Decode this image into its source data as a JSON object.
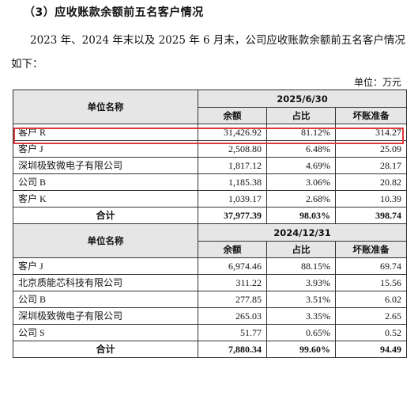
{
  "section_heading": "（3）应收账款余额前五名客户情况",
  "intro_text": "2023 年、2024 年末以及 2025 年 6 月末，公司应收账款余额前五名客户情况如下：",
  "unit_label": "单位：万元",
  "highlight_color": "#e0393b",
  "tables": [
    {
      "name_header": "单位名称",
      "period": "2025/6/30",
      "col_balance": "余额",
      "col_ratio": "占比",
      "col_provision": "坏账准备",
      "rows": [
        {
          "name": "客户 R",
          "balance": "31,426.92",
          "ratio": "81.12%",
          "provision": "314.27",
          "highlighted": true
        },
        {
          "name": "客户 J",
          "balance": "2,508.80",
          "ratio": "6.48%",
          "provision": "25.09"
        },
        {
          "name": "深圳极致微电子有限公司",
          "balance": "1,817.12",
          "ratio": "4.69%",
          "provision": "28.17"
        },
        {
          "name": "公司 B",
          "balance": "1,185.38",
          "ratio": "3.06%",
          "provision": "20.82"
        },
        {
          "name": "客户 K",
          "balance": "1,039.17",
          "ratio": "2.68%",
          "provision": "10.39"
        }
      ],
      "total": {
        "label": "合计",
        "balance": "37,977.39",
        "ratio": "98.03%",
        "provision": "398.74"
      }
    },
    {
      "name_header": "单位名称",
      "period": "2024/12/31",
      "col_balance": "余额",
      "col_ratio": "占比",
      "col_provision": "坏账准备",
      "rows": [
        {
          "name": "客户 J",
          "balance": "6,974.46",
          "ratio": "88.15%",
          "provision": "69.74"
        },
        {
          "name": "北京质能芯科技有限公司",
          "balance": "311.22",
          "ratio": "3.93%",
          "provision": "15.56"
        },
        {
          "name": "公司 B",
          "balance": "277.85",
          "ratio": "3.51%",
          "provision": "6.02"
        },
        {
          "name": "深圳极致微电子有限公司",
          "balance": "265.03",
          "ratio": "3.35%",
          "provision": "2.65"
        },
        {
          "name": "公司 S",
          "balance": "51.77",
          "ratio": "0.65%",
          "provision": "0.52"
        }
      ],
      "total": {
        "label": "合计",
        "balance": "7,880.34",
        "ratio": "99.60%",
        "provision": "94.49"
      }
    }
  ]
}
